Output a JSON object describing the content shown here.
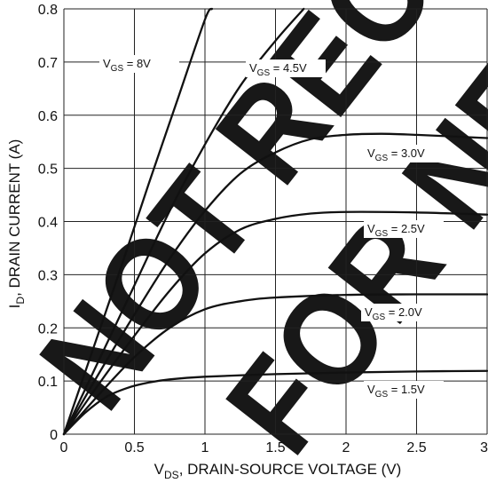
{
  "chart_data": {
    "type": "line",
    "xlabel_parts": {
      "main": "V",
      "sub": "DS",
      "rest": ", DRAIN-SOURCE VOLTAGE (V)"
    },
    "ylabel_parts": {
      "main": "I",
      "sub": "D",
      "rest": ", DRAIN CURRENT (A)"
    },
    "xlim": [
      0,
      3
    ],
    "ylim": [
      0,
      0.8
    ],
    "x_ticks": [
      0,
      0.5,
      1,
      1.5,
      2,
      2.5,
      3
    ],
    "x_tick_labels": [
      "0",
      "0.5",
      "1",
      "1.5",
      "2",
      "2.5",
      "3"
    ],
    "y_ticks": [
      0,
      0.1,
      0.2,
      0.3,
      0.4,
      0.5,
      0.6,
      0.7,
      0.8
    ],
    "y_tick_labels": [
      "0",
      "0.1",
      "0.2",
      "0.3",
      "0.4",
      "0.5",
      "0.6",
      "0.7",
      "0.8"
    ],
    "grid": true,
    "series": [
      {
        "name": "VGS = 8V",
        "label": {
          "main": "V",
          "sub": "GS",
          "rest": " = 8V"
        },
        "x": [
          0,
          0.2,
          0.4,
          0.6,
          0.8,
          1.0,
          1.05
        ],
        "y": [
          0,
          0.155,
          0.31,
          0.47,
          0.625,
          0.78,
          0.8
        ]
      },
      {
        "name": "VGS = 4.5V",
        "label": {
          "main": "V",
          "sub": "GS",
          "rest": " = 4.5V"
        },
        "x": [
          0,
          0.25,
          0.5,
          0.75,
          1.0,
          1.25,
          1.5,
          1.7
        ],
        "y": [
          0,
          0.14,
          0.28,
          0.42,
          0.545,
          0.655,
          0.74,
          0.8
        ]
      },
      {
        "name": "VGS = 3.0V",
        "label": {
          "main": "V",
          "sub": "GS",
          "rest": " = 3.0V"
        },
        "x": [
          0,
          0.25,
          0.5,
          0.75,
          1.0,
          1.25,
          1.5,
          1.75,
          2.0,
          2.25,
          2.5,
          3.0
        ],
        "y": [
          0,
          0.115,
          0.225,
          0.33,
          0.42,
          0.49,
          0.53,
          0.555,
          0.563,
          0.565,
          0.563,
          0.557
        ]
      },
      {
        "name": "VGS = 2.5V",
        "label": {
          "main": "V",
          "sub": "GS",
          "rest": " = 2.5V"
        },
        "x": [
          0,
          0.25,
          0.5,
          0.75,
          1.0,
          1.25,
          1.5,
          1.75,
          2.0,
          2.5,
          3.0
        ],
        "y": [
          0,
          0.095,
          0.185,
          0.27,
          0.34,
          0.385,
          0.405,
          0.415,
          0.418,
          0.417,
          0.413
        ]
      },
      {
        "name": "VGS = 2.0V",
        "label": {
          "main": "V",
          "sub": "GS",
          "rest": " = 2.0V"
        },
        "x": [
          0,
          0.25,
          0.5,
          0.75,
          1.0,
          1.25,
          1.5,
          2.0,
          2.5,
          3.0
        ],
        "y": [
          0,
          0.075,
          0.145,
          0.2,
          0.235,
          0.25,
          0.257,
          0.262,
          0.263,
          0.263
        ]
      },
      {
        "name": "VGS = 1.5V",
        "label": {
          "main": "V",
          "sub": "GS",
          "rest": " = 1.5V"
        },
        "x": [
          0,
          0.15,
          0.3,
          0.45,
          0.6,
          0.75,
          1.0,
          1.5,
          2.0,
          2.5,
          3.0
        ],
        "y": [
          0,
          0.04,
          0.07,
          0.087,
          0.097,
          0.103,
          0.108,
          0.113,
          0.116,
          0.118,
          0.119
        ]
      }
    ]
  },
  "watermark": {
    "lines": [
      "NOT RECOMMENDED",
      "FOR NEW DESIGN"
    ],
    "color": "#000000"
  }
}
